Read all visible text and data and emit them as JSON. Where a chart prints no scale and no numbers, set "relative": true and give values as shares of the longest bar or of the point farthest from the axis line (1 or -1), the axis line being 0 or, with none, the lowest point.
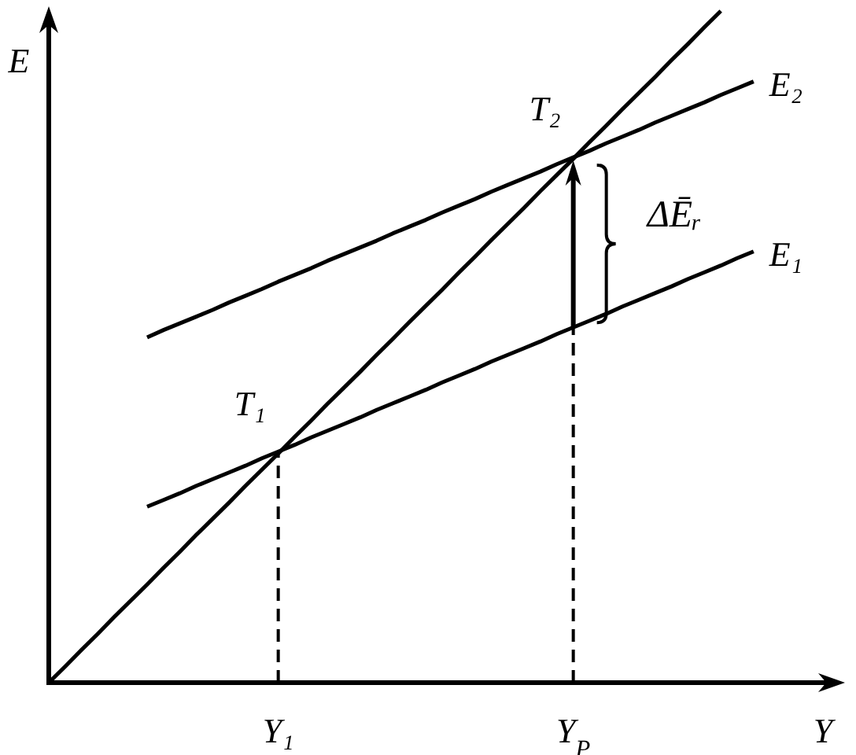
{
  "chart_data": {
    "type": "line",
    "relative": true,
    "xlabel": "Y",
    "ylabel": "E",
    "tick_labels": "x",
    "categories": [
      null,
      null,
      null,
      null,
      null,
      null,
      null,
      null,
      null,
      null,
      null,
      null,
      null,
      null,
      "Y₁",
      null,
      null,
      null,
      null,
      null,
      null,
      null,
      null,
      null,
      null,
      null,
      null,
      null,
      null,
      null,
      null,
      null,
      "Y$_{P}$",
      null,
      null,
      null,
      null,
      null,
      null,
      null,
      null,
      null,
      null,
      null,
      null,
      null,
      null,
      null,
      null
    ],
    "series": [
      {
        "color": "#000000",
        "values": [
          0,
          0.024,
          0.049,
          0.073,
          0.098,
          0.122,
          0.146,
          0.171,
          0.195,
          0.22,
          0.244,
          0.268,
          0.293,
          0.317,
          0.341,
          0.366,
          0.39,
          0.415,
          0.439,
          0.463,
          0.488,
          0.512,
          0.537,
          0.561,
          0.585,
          0.61,
          0.634,
          0.659,
          0.683,
          0.707,
          0.732,
          0.756,
          0.78,
          0.805,
          0.829,
          0.854,
          0.878,
          0.902,
          0.927,
          0.951,
          0.976,
          1,
          null,
          null,
          null,
          null,
          null,
          null,
          null
        ]
      },
      {
        "name": "E₁",
        "color": "#000000",
        "values": [
          null,
          null,
          null,
          null,
          null,
          null,
          0.262,
          0.272,
          0.282,
          0.293,
          0.303,
          0.313,
          0.323,
          0.334,
          0.344,
          0.354,
          0.365,
          0.375,
          0.385,
          0.395,
          0.406,
          0.416,
          0.426,
          0.436,
          0.447,
          0.457,
          0.467,
          0.478,
          0.488,
          0.498,
          0.508,
          0.519,
          0.529,
          0.539,
          0.549,
          0.56,
          0.57,
          0.58,
          0.59,
          0.601,
          0.611,
          0.621,
          0.632,
          0.642,
          null,
          null,
          null,
          null,
          null
        ]
      },
      {
        "name": "E₂",
        "color": "#000000",
        "values": [
          null,
          null,
          null,
          null,
          null,
          null,
          0.514,
          0.525,
          0.535,
          0.545,
          0.555,
          0.566,
          0.576,
          0.586,
          0.597,
          0.607,
          0.617,
          0.628,
          0.638,
          0.648,
          0.658,
          0.669,
          0.679,
          0.689,
          0.7,
          0.71,
          0.72,
          0.731,
          0.741,
          0.751,
          0.761,
          0.772,
          0.782,
          0.792,
          0.803,
          0.813,
          0.823,
          0.834,
          0.844,
          0.854,
          0.864,
          0.875,
          0.885,
          0.895,
          null,
          null,
          null,
          null,
          null
        ]
      },
      {
        "color": "#000000",
        "line_style": "dashed",
        "x": [
          "Y₁",
          "Y₁"
        ],
        "values": [
          0,
          0.342
        ]
      },
      {
        "color": "#000000",
        "line_style": "dashed",
        "x": [
          "Y$_{P}$",
          "Y$_{P}$"
        ],
        "values": [
          0,
          0.529
        ]
      }
    ],
    "annotations": [
      {
        "text": "T₁",
        "x": "Y₁",
        "y": 0.342
      },
      {
        "text": "T₂",
        "x": "Y$_{P}$",
        "y": 0.781
      },
      "ΔĒᵣ"
    ]
  }
}
